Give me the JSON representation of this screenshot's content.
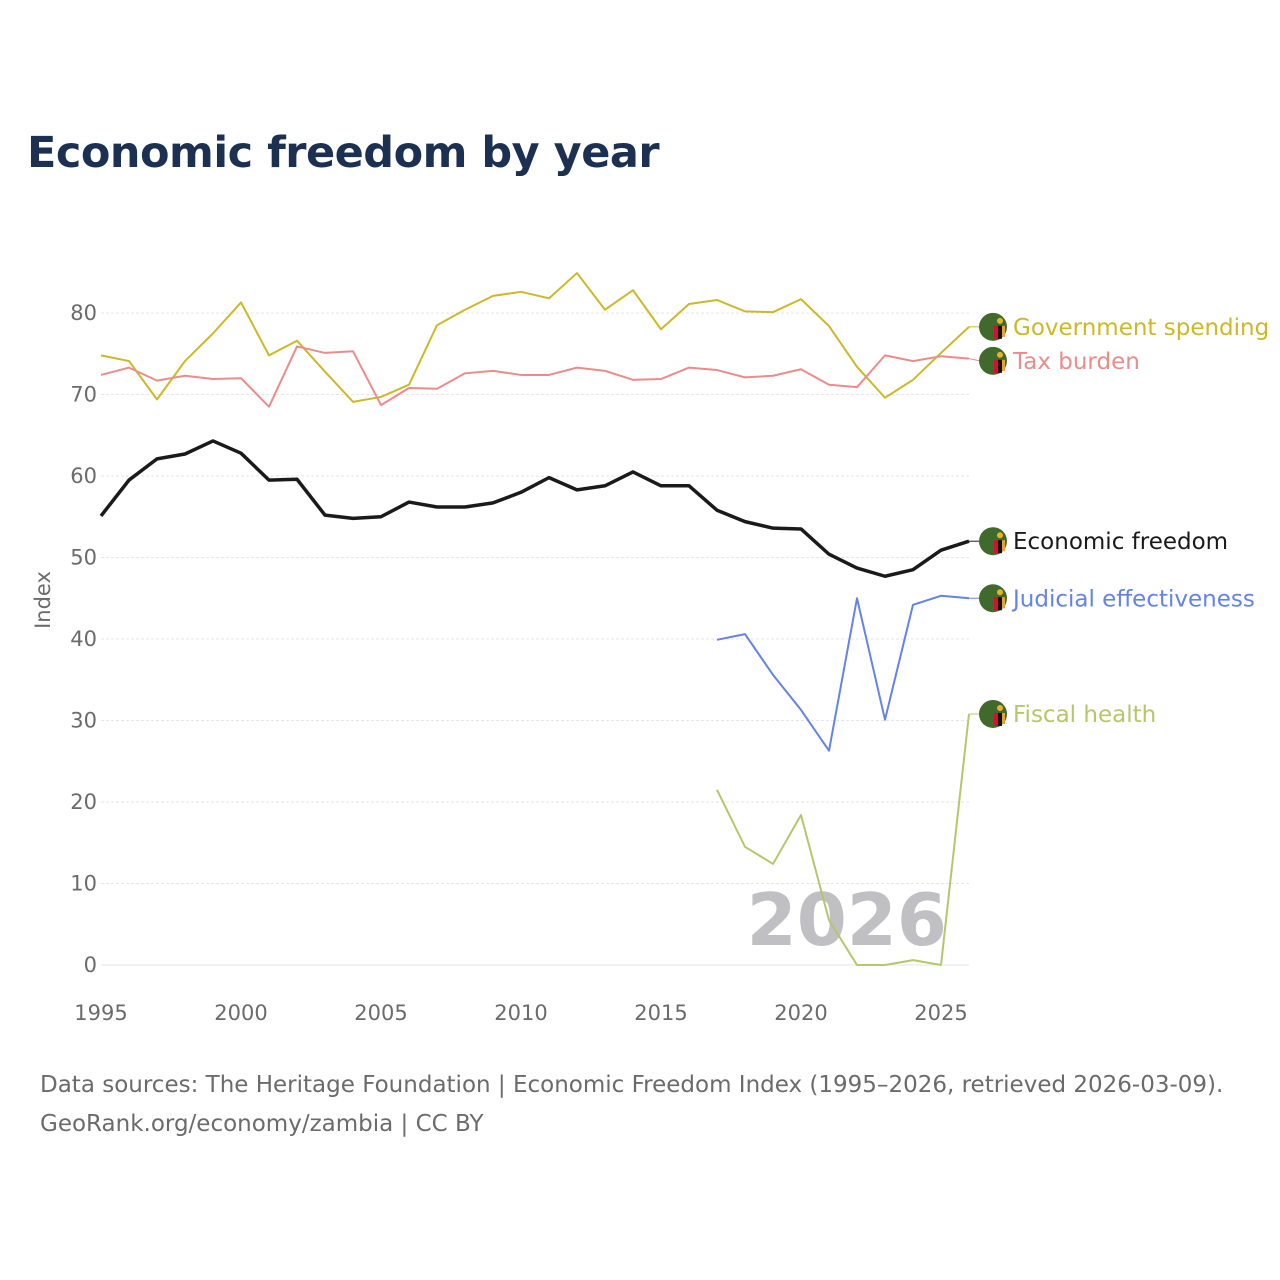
{
  "chart_data": {
    "type": "line",
    "title": "Economic freedom by year",
    "xlabel": "",
    "ylabel": "Index",
    "xlim": [
      1995,
      2026
    ],
    "ylim": [
      0,
      85
    ],
    "x_ticks": [
      1995,
      2000,
      2005,
      2010,
      2015,
      2020,
      2025
    ],
    "y_ticks": [
      0,
      10,
      20,
      30,
      40,
      50,
      60,
      70,
      80
    ],
    "grid": true,
    "year_watermark": "2026",
    "series": [
      {
        "name": "Government spending",
        "color": "#cdb827",
        "width": 2,
        "x": [
          1995,
          1996,
          1997,
          1998,
          1999,
          2000,
          2001,
          2002,
          2003,
          2004,
          2005,
          2006,
          2007,
          2008,
          2009,
          2010,
          2011,
          2012,
          2013,
          2014,
          2015,
          2016,
          2017,
          2018,
          2019,
          2020,
          2021,
          2022,
          2023,
          2024,
          2025,
          2026
        ],
        "values": [
          74.8,
          74.1,
          69.4,
          74.1,
          77.5,
          81.3,
          74.8,
          76.6,
          72.8,
          69.1,
          69.7,
          71.2,
          78.5,
          80.4,
          82.1,
          82.6,
          81.8,
          84.9,
          80.4,
          82.8,
          78.0,
          81.1,
          81.6,
          80.2,
          80.1,
          81.7,
          78.4,
          73.4,
          69.6,
          71.8,
          75.1,
          78.3
        ]
      },
      {
        "name": "Tax burden",
        "color": "#ea8c8c",
        "width": 2,
        "x": [
          1995,
          1996,
          1997,
          1998,
          1999,
          2000,
          2001,
          2002,
          2003,
          2004,
          2005,
          2006,
          2007,
          2008,
          2009,
          2010,
          2011,
          2012,
          2013,
          2014,
          2015,
          2016,
          2017,
          2018,
          2019,
          2020,
          2021,
          2022,
          2023,
          2024,
          2025,
          2026
        ],
        "values": [
          72.4,
          73.3,
          71.7,
          72.3,
          71.9,
          72.0,
          68.5,
          75.9,
          75.1,
          75.3,
          68.7,
          70.8,
          70.7,
          72.6,
          72.9,
          72.4,
          72.4,
          73.3,
          72.9,
          71.8,
          71.9,
          73.3,
          73.0,
          72.1,
          72.3,
          73.1,
          71.2,
          70.9,
          74.8,
          74.1,
          74.7,
          74.4
        ]
      },
      {
        "name": "Economic freedom",
        "color": "#1a1a1a",
        "width": 3.5,
        "x": [
          1995,
          1996,
          1997,
          1998,
          1999,
          2000,
          2001,
          2002,
          2003,
          2004,
          2005,
          2006,
          2007,
          2008,
          2009,
          2010,
          2011,
          2012,
          2013,
          2014,
          2015,
          2016,
          2017,
          2018,
          2019,
          2020,
          2021,
          2022,
          2023,
          2024,
          2025,
          2026
        ],
        "values": [
          55.1,
          59.5,
          62.1,
          62.7,
          64.3,
          62.8,
          59.5,
          59.6,
          55.2,
          54.8,
          55.0,
          56.8,
          56.2,
          56.2,
          56.7,
          58.0,
          59.8,
          58.3,
          58.8,
          60.5,
          58.8,
          58.8,
          55.8,
          54.4,
          53.6,
          53.5,
          50.4,
          48.7,
          47.7,
          48.5,
          50.9,
          52.0
        ]
      },
      {
        "name": "Judicial effectiveness",
        "color": "#6383e8",
        "width": 2,
        "x": [
          2017,
          2018,
          2019,
          2020,
          2021,
          2022,
          2023,
          2024,
          2025,
          2026
        ],
        "values": [
          39.9,
          40.6,
          35.6,
          31.3,
          26.3,
          45.0,
          30.1,
          44.2,
          45.3,
          45.0
        ]
      },
      {
        "name": "Fiscal health",
        "color": "#b5c76a",
        "width": 2,
        "x": [
          2017,
          2018,
          2019,
          2020,
          2021,
          2022,
          2023,
          2024,
          2025,
          2026
        ],
        "values": [
          21.5,
          14.5,
          12.4,
          18.4,
          5.5,
          0,
          0,
          0.6,
          0,
          30.8
        ]
      }
    ]
  },
  "footer": {
    "line1": "Data sources: The Heritage Foundation | Economic Freedom Index (1995–2026, retrieved 2026-03-09).",
    "line2": "GeoRank.org/economy/zambia | CC BY"
  }
}
